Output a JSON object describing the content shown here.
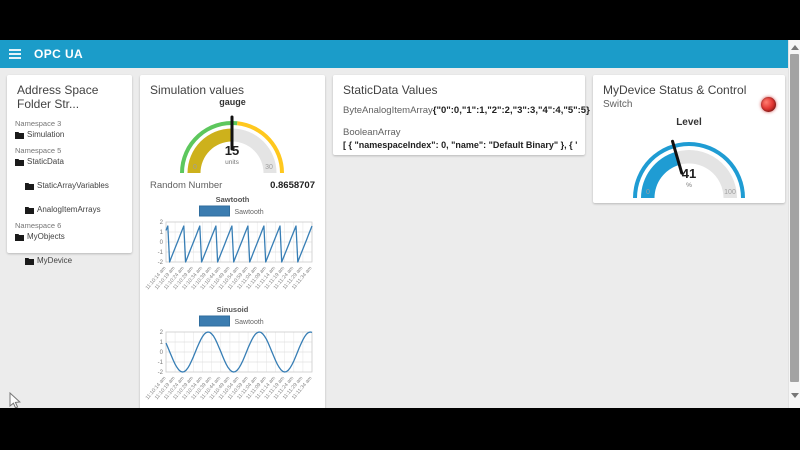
{
  "header": {
    "title": "OPC UA",
    "bg_color": "#1b9cc9"
  },
  "cards": {
    "address_space": {
      "title": "Address Space Folder Str...",
      "tree": [
        {
          "kind": "namespace",
          "label": "Namespace 3"
        },
        {
          "kind": "folder",
          "label": "Simulation",
          "indent": 0
        },
        {
          "kind": "namespace",
          "label": "Namespace 5"
        },
        {
          "kind": "folder",
          "label": "StaticData",
          "indent": 0
        },
        {
          "kind": "folder",
          "label": "StaticArrayVariables",
          "indent": 1
        },
        {
          "kind": "folder",
          "label": "AnalogItemArrays",
          "indent": 1
        },
        {
          "kind": "namespace",
          "label": "Namespace 6"
        },
        {
          "kind": "folder",
          "label": "MyObjects",
          "indent": 0
        },
        {
          "kind": "folder",
          "label": "MyDevice",
          "indent": 1
        }
      ]
    },
    "simulation": {
      "title": "Simulation values",
      "gauge": {
        "label": "gauge",
        "value": 15,
        "units": "units",
        "min": 0,
        "max": 30,
        "ring": [
          {
            "to": 16,
            "color": "#5dc75d"
          },
          {
            "to": 30,
            "color": "#ffc81e"
          }
        ],
        "fill": "#cdb11c",
        "rest": "#e4e4e4",
        "needle_color": "#111111"
      },
      "random_label": "Random Number",
      "random_value": "0.8658707"
    },
    "staticdata": {
      "title": "StaticData Values",
      "rows": [
        {
          "label": "ByteAnalogItemArray",
          "value": "{\"0\":0,\"1\":1,\"2\":2,\"3\":3,\"4\":4,\"5\":5}"
        },
        {
          "label": "BooleanArray",
          "value": "[ { \"namespaceIndex\": 0, \"name\": \"Default Binary\" }, { \"namespaceIn..."
        }
      ]
    },
    "mydevice": {
      "title": "MyDevice Status & Control",
      "switch_label": "Switch",
      "led_color": "#e53935",
      "gauge": {
        "label": "Level",
        "value": 41,
        "units": "%",
        "min": 0,
        "max": 100,
        "ring": [
          {
            "to": 100,
            "color": "#1f9cd3"
          }
        ],
        "fill": "#1f9cd3",
        "rest": "#e4e4e4",
        "needle_color": "#111111"
      }
    }
  },
  "chart_data": [
    {
      "type": "line",
      "title": "Sawtooth",
      "legend": "Sawtooth",
      "line_color": "#377eb5",
      "ylim": [
        -2,
        2
      ],
      "yticks": [
        2,
        1,
        0,
        -1,
        -2
      ],
      "grid": true,
      "legend_position": "top",
      "x_labels": [
        "11:10:14 am",
        "11:10:19 am",
        "11:10:24 am",
        "11:10:29 am",
        "11:10:34 am",
        "11:10:39 am",
        "11:10:44 am",
        "11:10:49 am",
        "11:10:54 am",
        "11:10:59 am",
        "11:11:04 am",
        "11:11:09 am",
        "11:11:14 am",
        "11:11:19 am",
        "11:11:24 am",
        "11:11:29 am",
        "11:11:34 am"
      ],
      "values": [
        1.15,
        1.6,
        -2,
        -1.55,
        -1.1,
        -0.65,
        -0.2,
        0.25,
        0.7,
        1.15,
        1.6,
        -2,
        -1.55,
        -1.1,
        -0.65,
        -0.2,
        0.25,
        0.7,
        1.15,
        1.6,
        -2,
        -1.55,
        -1.1,
        -0.65,
        -0.2,
        0.25,
        0.7,
        1.15,
        1.6,
        -2,
        -1.55,
        -1.1,
        -0.65,
        -0.2,
        0.25,
        0.7,
        1.15,
        1.6,
        -2,
        -1.55,
        -1.1,
        -0.65,
        -0.2,
        0.25,
        0.7,
        1.15,
        1.6,
        -2,
        -1.55,
        -1.1,
        -0.65,
        -0.2,
        0.25,
        0.7,
        1.15,
        1.6,
        -2,
        -1.55,
        -1.1,
        -0.65,
        -0.2,
        0.25,
        0.7,
        1.15,
        1.6,
        -2,
        -1.55,
        -1.1,
        -0.65,
        -0.2,
        0.25,
        0.7,
        1.15,
        1.6,
        -2,
        -1.55,
        -1.1,
        -0.65,
        -0.2,
        0.25,
        0.7,
        1.15,
        1.6
      ]
    },
    {
      "type": "line",
      "title": "Sinusoid",
      "legend": "Sawtooth",
      "line_color": "#377eb5",
      "ylim": [
        -2,
        2
      ],
      "yticks": [
        2,
        1,
        0,
        -1,
        -2
      ],
      "grid": true,
      "legend_position": "top",
      "x_labels": [
        "11:10:14 am",
        "11:10:19 am",
        "11:10:24 am",
        "11:10:29 am",
        "11:10:34 am",
        "11:10:39 am",
        "11:10:44 am",
        "11:10:49 am",
        "11:10:54 am",
        "11:10:59 am",
        "11:11:04 am",
        "11:11:09 am",
        "11:11:14 am",
        "11:11:19 am",
        "11:11:24 am",
        "11:11:29 am",
        "11:11:34 am"
      ],
      "values": [
        0.9,
        0.48,
        0.04,
        -0.41,
        -0.84,
        -1.22,
        -1.54,
        -1.79,
        -1.94,
        -2,
        -1.96,
        -1.82,
        -1.59,
        -1.28,
        -0.9,
        -0.48,
        -0.04,
        0.41,
        0.84,
        1.22,
        1.54,
        1.79,
        1.94,
        2,
        1.96,
        1.82,
        1.59,
        1.28,
        0.9,
        0.48,
        0.04,
        -0.41,
        -0.84,
        -1.22,
        -1.54,
        -1.79,
        -1.94,
        -2,
        -1.96,
        -1.82,
        -1.59,
        -1.28,
        -0.9,
        -0.48,
        -0.04,
        0.41,
        0.84,
        1.22,
        1.54,
        1.79,
        1.94,
        2,
        1.96,
        1.82,
        1.59,
        1.28,
        0.9,
        0.48,
        0.04,
        -0.41,
        -0.84,
        -1.22,
        -1.54,
        -1.79,
        -1.94,
        -2,
        -1.96,
        -1.82,
        -1.59,
        -1.28,
        -0.9,
        -0.48,
        -0.04,
        0.41,
        0.84,
        1.22,
        1.54,
        1.79,
        1.94,
        2,
        1.96
      ]
    }
  ]
}
